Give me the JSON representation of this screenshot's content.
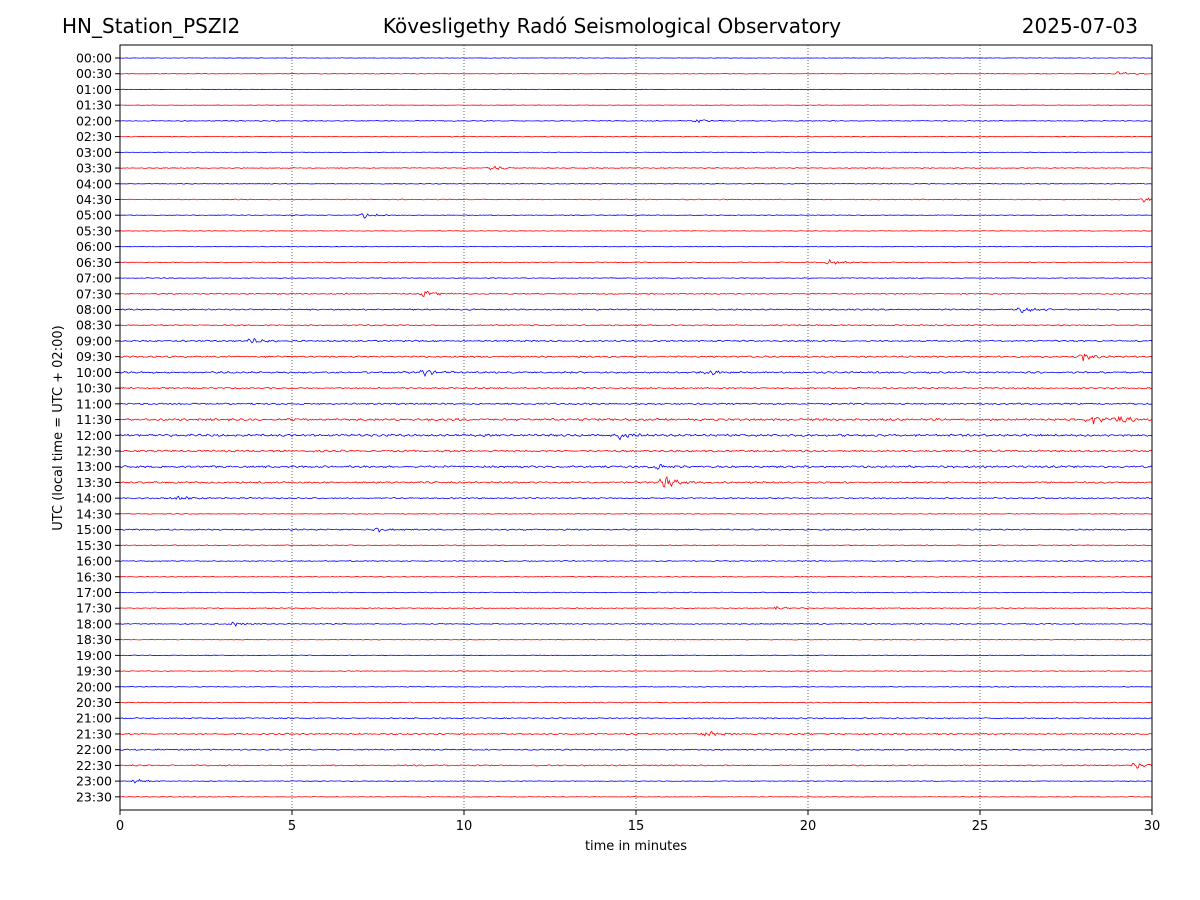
{
  "header": {
    "station": "HN_Station_PSZI2",
    "observatory": "Kövesligethy Radó Seismological Observatory",
    "date": "2025-07-03"
  },
  "chart_data": {
    "type": "line",
    "title": "Kövesligethy Radó Seismological Observatory",
    "xlabel": "time in minutes",
    "ylabel": "UTC (local time = UTC + 02:00)",
    "xlim": [
      0,
      30
    ],
    "x_ticks": [
      0,
      5,
      10,
      15,
      20,
      25,
      30
    ],
    "x_tick_labels": [
      "0",
      "5",
      "10",
      "15",
      "20",
      "25",
      "30"
    ],
    "grid": "vertical dotted at 5-minute ticks",
    "row_labels": [
      "00:00",
      "00:30",
      "01:00",
      "01:30",
      "02:00",
      "02:30",
      "03:00",
      "03:30",
      "04:00",
      "04:30",
      "05:00",
      "05:30",
      "06:00",
      "06:30",
      "07:00",
      "07:30",
      "08:00",
      "08:30",
      "09:00",
      "09:30",
      "10:00",
      "10:30",
      "11:00",
      "11:30",
      "12:00",
      "12:30",
      "13:00",
      "13:30",
      "14:00",
      "14:30",
      "15:00",
      "15:30",
      "16:00",
      "16:30",
      "17:00",
      "17:30",
      "18:00",
      "18:30",
      "19:00",
      "19:30",
      "20:00",
      "20:30",
      "21:00",
      "21:30",
      "22:00",
      "22:30",
      "23:00",
      "23:30"
    ],
    "trace_colors": [
      "#0000ff",
      "#ff0000"
    ],
    "row_activity": [
      0.2,
      0.25,
      0.2,
      0.2,
      0.35,
      0.3,
      0.2,
      0.35,
      0.3,
      0.35,
      0.3,
      0.25,
      0.2,
      0.35,
      0.3,
      0.45,
      0.55,
      0.5,
      0.6,
      0.65,
      0.7,
      0.6,
      0.65,
      0.9,
      0.9,
      0.75,
      0.8,
      0.7,
      0.55,
      0.3,
      0.55,
      0.4,
      0.4,
      0.3,
      0.35,
      0.35,
      0.4,
      0.3,
      0.3,
      0.3,
      0.3,
      0.35,
      0.5,
      0.6,
      0.5,
      0.5,
      0.3,
      0.25
    ],
    "events": [
      {
        "row": "00:30",
        "x": 29.0,
        "amp": 2
      },
      {
        "row": "02:00",
        "x": 16.8,
        "amp": 2
      },
      {
        "row": "03:30",
        "x": 10.8,
        "amp": 2.5
      },
      {
        "row": "04:30",
        "x": 29.8,
        "amp": 3
      },
      {
        "row": "05:00",
        "x": 7.1,
        "amp": 2.5
      },
      {
        "row": "06:30",
        "x": 20.6,
        "amp": 3
      },
      {
        "row": "07:30",
        "x": 8.8,
        "amp": 3
      },
      {
        "row": "08:00",
        "x": 26.2,
        "amp": 3
      },
      {
        "row": "09:00",
        "x": 3.8,
        "amp": 3
      },
      {
        "row": "09:30",
        "x": 28.0,
        "amp": 4
      },
      {
        "row": "10:00",
        "x": 8.8,
        "amp": 3
      },
      {
        "row": "10:00",
        "x": 17.0,
        "amp": 3
      },
      {
        "row": "11:30",
        "x": 28.2,
        "amp": 5
      },
      {
        "row": "11:30",
        "x": 29.0,
        "amp": 4
      },
      {
        "row": "12:00",
        "x": 14.5,
        "amp": 3
      },
      {
        "row": "13:00",
        "x": 15.5,
        "amp": 3
      },
      {
        "row": "13:30",
        "x": 15.8,
        "amp": 7
      },
      {
        "row": "14:00",
        "x": 1.6,
        "amp": 2
      },
      {
        "row": "15:00",
        "x": 7.4,
        "amp": 3
      },
      {
        "row": "17:30",
        "x": 19.0,
        "amp": 2
      },
      {
        "row": "18:00",
        "x": 3.3,
        "amp": 2
      },
      {
        "row": "21:30",
        "x": 17.0,
        "amp": 3
      },
      {
        "row": "22:30",
        "x": 29.5,
        "amp": 3
      },
      {
        "row": "23:00",
        "x": 0.4,
        "amp": 2
      }
    ]
  }
}
